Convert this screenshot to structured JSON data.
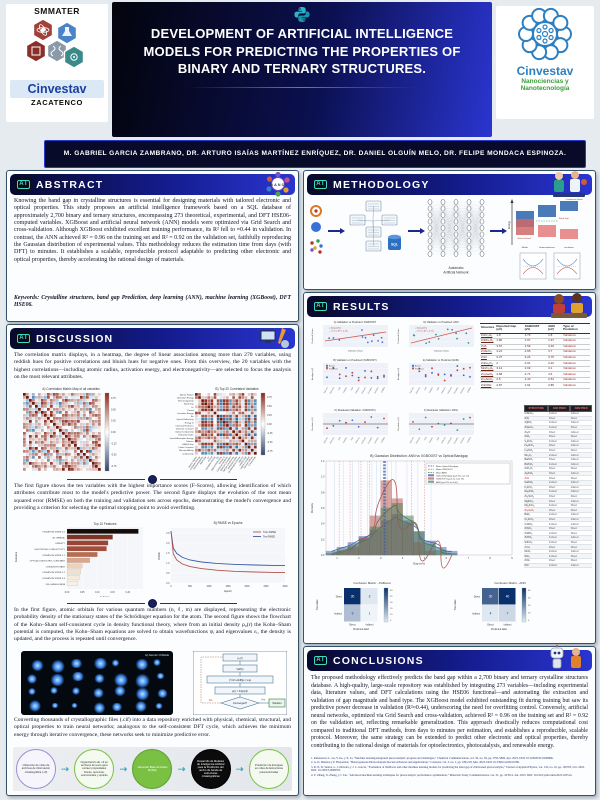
{
  "header": {
    "title": "DEVELOPMENT OF ARTIFICIAL INTELLIGENCE MODELS FOR PREDICTING THE PROPERTIES OF BINARY AND TERNARY STRUCTURES.",
    "authors": "M. GABRIEL GARCIA ZAMBRANO, DR. ARTURO ISAÍAS MARTÍNEZ ENRÍQUEZ, DR. DANIEL OLGUÍN MELO, DR. FELIPE MONDACA ESPINOZA.",
    "logo_left": {
      "program": "SMMATER",
      "brand": "Cinvestav",
      "campus": "ZACATENCO"
    },
    "logo_right": {
      "brand": "Cinvestav",
      "line1": "Nanociencias y",
      "line2": "Nanotecnología"
    }
  },
  "abstract": {
    "heading": "ABSTRACT",
    "body": "Knowing the band gap in crystalline structures is essential for designing materials with tailored electronic and optical properties. This study proposes an artificial intelligence framework based on a SQL database of approximately 2,700 binary and ternary structures, encompassing 273 theoretical, experimental, and DFT HSE06-computed variables. XGBoost and artificial neural network (ANN) models were optimized via Grid Search and cross-validation. Although XGBoost exhibited excellent training performance, its R² fell to ≈0.44 in validation. In contrast, the ANN achieved R² = 0.96 on the training set and R² = 0.92 on the validation set, faithfully reproducing the Gaussian distribution of experimental values. This methodology reduces the estimation time from days (with DFT) to minutes. It establishes a scalable, reproducible protocol adaptable to predicting other electronic and optical properties, thereby accelerating the rational design of materials.",
    "keywords": "Keywords: Crystalline structures, band gap Prediction, deep learning (ANN), machine learning (XGBoost), DFT HSE06."
  },
  "methodology": {
    "heading": "METHODOLOGY",
    "sql_label": "SQL",
    "nn_caption_1": "Automatic",
    "nn_caption_2": "Artificial Network",
    "band_chart": {
      "ylabel": "Energy",
      "conduction": "Conduction Band",
      "valence": "Valence Band",
      "gap": "Band Gap",
      "categories": [
        "Metals",
        "Semiconductors",
        "Insulators"
      ]
    }
  },
  "discussion": {
    "heading": "DISCUSSION",
    "p1": "The correlation matrix displays, in a heatmap, the degree of linear association among more than 270 variables, using reddish hues for positive correlations and bluish hues for negative ones. From this overview, the 20 variables with the highest correlations—including atomic radius, activation energy, and electronegativity—are selected to focus the analysis on the most relevant attributes.",
    "p2": "The first figure shows the ten variables with the highest importance scores (F-Scores), allowing identification of which attributes contribute most to the model's predictive power. The second figure displays the evolution of the root mean squared error (RMSE) on both the training and validation sets across epochs, demonstrating the model's convergence and providing a criterion for selecting the optimal stopping point to avoid overfitting.",
    "p3": "In the first figure, atomic orbitals for various quantum numbers (n, ℓ, m) are displayed, representing the electronic probability density of the stationary states of the Schrödinger equation for the atom. The second figure shows the flowchart of the Kohn–Sham self-consistent cycle in density functional theory, where from an initial density ρ₀(r) the Kohn–Sham potential is computed, the Kohn–Sham equations are solved to obtain wavefunctions ψᵢ and eigenvalues εᵢ, the density is updated, and the process is repeated until convergence.",
    "p4": "Converting thousands of crystallographic files (.cif) into a data repository enriched with physical, chemical, structural, and optical properties to train neural networks; analogous to the self-consistent DFT cycle, which achieves the minimum energy through iterative convergence, these networks seek to minimize predictive error.",
    "heatmap_a_title": "A) Correlation Matrix Map of all variables",
    "heatmap_b_title": "B) Top 20 Correlated Variables",
    "heatmap_labels": [
      "Atomic Radius",
      "Activation Energy",
      "Electronegativity",
      "Band Gap",
      "Cv",
      "Period",
      "Ionization Energy",
      "Ea",
      "Optical Reflectivity",
      "Energy G",
      "Chemical Hardness",
      "Dielectric Constant",
      "Optical Conductivity",
      "Refraction Index",
      "Optical Absorption Energy",
      "Valence",
      "HSE06 Gap",
      "Lattice Constant",
      "Electron Affinity",
      "Conductivity"
    ],
    "colorbar_ticks": [
      "0.75",
      "0.50",
      "0.25",
      "0.00",
      "-0.25",
      "-0.50",
      "-0.75"
    ],
    "feature_chart": {
      "type": "bar",
      "title": "Top 10 Features",
      "xlabel": "F-Score",
      "ylabel": "Features",
      "categories": [
        "OXIDATION STATE 2.0",
        "3D ORBITAL",
        "DENSITY",
        "ELECTRICAL CONDUCTIVITY",
        "OXIDATION STATE 2.1",
        "OPTICAL DIELECTRIC CONSTANT",
        "OXIDATION STATE",
        "OXIDATION STATE 2.2",
        "OXIDATION STATE 3.4",
        "CELL ANGLE BETA"
      ],
      "values": [
        0.235,
        0.15,
        0.135,
        0.13,
        0.1,
        0.075,
        0.05,
        0.045,
        0.04,
        0.035
      ],
      "colors": [
        "#170b09",
        "#7e3325",
        "#9c4434",
        "#a34c38",
        "#bb6b4e",
        "#d9a88c",
        "#ecd2bb",
        "#f2e0cc",
        "#f6ead9",
        "#f9f1e4"
      ],
      "xticks": [
        "0.00",
        "0.05",
        "0.10",
        "0.15",
        "0.20"
      ],
      "xlim": [
        0,
        0.25
      ]
    },
    "rmse_chart": {
      "type": "line",
      "title": "B) RMSE vs Epochs",
      "xlabel": "Epoch",
      "ylabel": "RMSE",
      "legend": [
        "Train RMSE",
        "Test RMSE"
      ],
      "x": [
        0,
        60,
        150,
        300,
        500,
        800,
        1200,
        1700,
        2200,
        2700,
        3000
      ],
      "train": [
        2.6,
        1.45,
        1.15,
        0.95,
        0.82,
        0.72,
        0.64,
        0.58,
        0.55,
        0.53,
        0.52
      ],
      "test": [
        2.6,
        1.75,
        1.48,
        1.28,
        1.15,
        1.05,
        0.98,
        0.93,
        0.9,
        0.88,
        0.87
      ],
      "train_color": "#b5534a",
      "test_color": "#3b5ba5",
      "yticks": [
        "0.0",
        "0.5",
        "1.0",
        "1.5",
        "2.0",
        "2.5"
      ],
      "xticks": [
        "0",
        "500",
        "1000",
        "1500",
        "2000",
        "2500",
        "3000"
      ],
      "xlim": [
        0,
        3000
      ],
      "ylim": [
        0,
        2.75
      ]
    },
    "orbitals_title": "A) Atomic Orbitals",
    "flowchart_steps": [
      "ρ₀(r)",
      "Veff(r)",
      "[-½∇²+Veff]ψᵢ = εᵢψᵢ",
      "ρ(r) = Σᵢ|ψᵢ(r)|²",
      "Converged?",
      "No",
      "Yes",
      "Solution"
    ],
    "process_steps": [
      {
        "text": "Obtención de miles de archivos de información cristalográfica (.cif)",
        "variant": "outline-purple"
      },
      {
        "text": "Organización de .cif en archivos de texto para extraer propiedades físicas, químicas, estructurales y ópticas",
        "variant": "outline-green"
      },
      {
        "text": "Alimentar Base de Datos MySQL",
        "variant": "fill-green"
      },
      {
        "text": "Desarrollo de Modelos de Inteligencia Artificial para la Predicción del ancho de banda de estructuras cristalográficas",
        "variant": "fill-black"
      },
      {
        "text": "Predicción de Energías en miles de Estructuras parametrizadas",
        "variant": "outline-green"
      }
    ]
  },
  "results": {
    "heading": "RESULTS",
    "scatters": [
      {
        "title": "A) Validation vs Predicted: XGBOOST",
        "legend": [
          "Data points",
          "Fit line (R² = 0.44)"
        ],
        "xlabel": "Validation Values",
        "ylabel": "Predicted Values",
        "point_color": "#4a6fd0"
      },
      {
        "title": "D) Validation vs Predicted: ANN",
        "legend": [
          "Data points",
          "Fit line (R² = 0.92)"
        ],
        "xlabel": "Validation Values",
        "ylabel": "Predicted Values",
        "point_color": "#2a9d8f"
      },
      {
        "title": "B) Validation vs Predicted (XGBOOST)",
        "legend": [
          "Actual",
          "Predicted"
        ],
        "ylabel": "Bandgap (eV)",
        "point_color": "#4a6fd0"
      },
      {
        "title": "E) Validation vs Predicted (ANN)",
        "legend": [
          "Actual",
          "Predicted"
        ],
        "ylabel": "Bandgap (eV)",
        "point_color": "#2a9d8f"
      },
      {
        "title": "C) Residuals (Validation: XGBOOST)",
        "legend": [],
        "ylabel": "Residuals (eV)",
        "point_color": "#4a6fd0"
      },
      {
        "title": "F) Residuals (Validation: ANN)",
        "legend": [],
        "ylabel": "Residuals (eV)",
        "point_color": "#2a9d8f"
      }
    ],
    "pred_table": {
      "headers": [
        "Structure",
        "Reported Gap (eV)",
        "XGBOOST (eV)",
        "ANN (eV)",
        "Type of Prediction"
      ],
      "rows": [
        [
          "ZnCr₂O₄",
          "1.8",
          "1.73",
          "1.8",
          "Validation"
        ],
        [
          "ZnMn₂O₄",
          "1.86",
          "1.97",
          "1.97",
          "Validation"
        ],
        [
          "ZnS",
          "3.67",
          "2.59",
          "3.49",
          "Validation"
        ],
        [
          "ZnSnO₃",
          "4.21",
          "2.65",
          "3.7",
          "Validation"
        ],
        [
          "ZnO",
          "3.37",
          "3.24",
          "3.75",
          "Validation"
        ],
        [
          "ZnFe₂O₄",
          "2",
          "2.01",
          "2.22",
          "Validation"
        ],
        [
          "MnZn₂O₄",
          "3.14",
          "2.03",
          "3.1",
          "Validation"
        ],
        [
          "Zn₂GeO₄",
          "4.68",
          "4.71",
          "4.6",
          "Validation"
        ],
        [
          "Zn₂SnO₄",
          "2.5",
          "2.43",
          "2.54",
          "Validation"
        ],
        [
          "ZnOOH",
          "2.87",
          "1.91",
          "2.85",
          "Validation"
        ]
      ]
    },
    "histogram": {
      "type": "bar",
      "title": "B) Gaussian Distribution: ANN vs XGBOOST vs Optical Bandgap",
      "xlabel": "Gap (eV)",
      "ylabel": "Density",
      "xlim": [
        0.5,
        9
      ],
      "ylim": [
        0,
        1.2
      ],
      "bin_start": 0.5,
      "bin_width": 0.5,
      "series": [
        {
          "name": "Optical Bandgap (μ=3.18, σ=1.12)",
          "color": "#3b5ba5",
          "bars": [
            0.05,
            0.1,
            0.16,
            0.24,
            0.32,
            0.44,
            0.52,
            0.44,
            0.3,
            0.18,
            0.1,
            0.05
          ]
        },
        {
          "name": "XGBOOST (μ=3.12, σ=0.76)",
          "color": "#b5534a",
          "bars": [
            0.0,
            0.04,
            0.1,
            0.22,
            0.5,
            0.95,
            0.72,
            0.4,
            0.16,
            0.05,
            0.0,
            0.0
          ]
        },
        {
          "name": "ANN (μ=3.23, σ=1.00)",
          "color": "#4a7a58",
          "bars": [
            0.02,
            0.06,
            0.12,
            0.2,
            0.36,
            0.6,
            0.66,
            0.5,
            0.3,
            0.14,
            0.06,
            0.02
          ]
        }
      ],
      "means": [
        {
          "label": "Mean Optical Bandgap",
          "x": 3.18,
          "color": "#3b5ba5"
        },
        {
          "label": "Mean XGBOOST",
          "x": 3.12,
          "color": "#b5534a"
        },
        {
          "label": "Mean ANN",
          "x": 3.23,
          "color": "#4a7a58"
        }
      ],
      "xticks": [
        "1",
        "2",
        "3",
        "4",
        "5",
        "6",
        "7",
        "8",
        "9"
      ],
      "yticks": [
        "0.0",
        "0.2",
        "0.4",
        "0.6",
        "0.8",
        "1.0",
        "1.2"
      ]
    },
    "class_table": {
      "headers": [
        "STRUCTURE",
        "XGB PRED",
        "ANN PRED"
      ],
      "rows": [
        [
          "CdSnO₃",
          "Indirect",
          "Indirect",
          0
        ],
        [
          "ZnS",
          "Direct",
          "Direct",
          0
        ],
        [
          "AgNO₃",
          "Indirect",
          "Indirect",
          0
        ],
        [
          "ZnGeO₃",
          "Indirect",
          "Direct",
          0
        ],
        [
          "Zn₂O",
          "Direct",
          "Indirect",
          0
        ],
        [
          "ZnO₂",
          "Direct",
          "Direct",
          0
        ],
        [
          "V₂ZnO₆",
          "Indirect",
          "Indirect",
          0
        ],
        [
          "Fe₂ZnO₄",
          "Direct",
          "Indirect",
          0
        ],
        [
          "In₂ZnO₄",
          "Direct",
          "Direct",
          0
        ],
        [
          "Mn₂O₃",
          "Indirect",
          "Indirect",
          0
        ],
        [
          "BaZnO₂",
          "Direct",
          "Indirect",
          0
        ],
        [
          "RbZnO₂",
          "Indirect",
          "Indirect",
          0
        ],
        [
          "ZnH₂O₂",
          "Direct",
          "Direct",
          0
        ],
        [
          "Al₂ZnO₄",
          "Direct",
          "Indirect",
          0
        ],
        [
          "ZnO",
          "Direct",
          "Direct",
          1
        ],
        [
          "CaZnO₂",
          "Indirect",
          "Indirect",
          0
        ],
        [
          "K₂ZnO₂",
          "Direct",
          "Indirect",
          0
        ],
        [
          "Na₂ZnO₂",
          "Indirect",
          "Indirect",
          0
        ],
        [
          "Zn₂SnO₄",
          "Direct",
          "Direct",
          0
        ],
        [
          "MgZnO₂",
          "Direct",
          "Indirect",
          0
        ],
        [
          "Mg₂ZnO₄",
          "Indirect",
          "Direct",
          0
        ],
        [
          "Zn₂GeO₄",
          "Direct",
          "Direct",
          1
        ],
        [
          "BaO₂",
          "Indirect",
          "Indirect",
          0
        ],
        [
          "Cr₂ZnO₄",
          "Direct",
          "Indirect",
          0
        ],
        [
          "CuWO₄",
          "Indirect",
          "Indirect",
          0
        ],
        [
          "ZnSO₄",
          "Direct",
          "Direct",
          0
        ],
        [
          "ZnWO₄",
          "Indirect",
          "Direct",
          0
        ],
        [
          "ZnTiO₃",
          "Indirect",
          "Indirect",
          0
        ],
        [
          "SrZnO₂",
          "Indirect",
          "Direct",
          0
        ],
        [
          "ZnSe",
          "Direct",
          "Direct",
          1
        ],
        [
          "MoO₃",
          "Indirect",
          "Indirect",
          0
        ],
        [
          "WO₃",
          "Indirect",
          "Direct",
          0
        ],
        [
          "ZnTe",
          "Direct",
          "Direct",
          0
        ],
        [
          "NiO",
          "Indirect",
          "Indirect",
          0
        ]
      ]
    },
    "confusion": [
      {
        "title": "Confusion Matrix - XGBoost",
        "row_labels": [
          "Direct",
          "Indirect"
        ],
        "col_labels": [
          "Direct",
          "Indirect"
        ],
        "cells": [
          [
            30,
            3
          ],
          [
            9,
            1
          ]
        ],
        "max": 30,
        "cbar_ticks": [
          "30",
          "25",
          "20",
          "15",
          "10",
          "5"
        ],
        "xlabel": "Predicted label",
        "ylabel": "True label"
      },
      {
        "title": "Confusion Matrix - ANN",
        "row_labels": [
          "Direct",
          "Indirect"
        ],
        "col_labels": [
          "Direct",
          "Indirect"
        ],
        "cells": [
          [
            30,
            40
          ],
          [
            4,
            7
          ]
        ],
        "max": 40,
        "cbar_ticks": [
          "40",
          "30",
          "20",
          "10",
          "5"
        ],
        "xlabel": "Predicted label",
        "ylabel": "True label"
      }
    ]
  },
  "conclusions": {
    "heading": "CONCLUSIONS",
    "body": "The proposed methodology effectively predicts the band gap within a 2,700 binary and ternary crystalline structures database. A high-quality, large-scale repository was established by integrating 273 variables—including experimental data, literature values, and DFT calculations using the HSE06 functional—and automating the extraction and validation of gap magnitude and band type. The XGBoost model exhibited outstanding fit during training but saw its predictive power decrease in validation (R²≈0.44), underscoring the need for overfitting control. Conversely, artificial neural networks, optimized via Grid Search and cross-validation, achieved R² = 0.96 on the training set and R² = 0.92 on the validation set, reflecting remarkable generalization. This approach drastically reduces computational cost compared to traditional DFT methods, from days to minutes per estimation, and establishes a reproducible, scalable protocol. Moreover, the same strategy can be extended to predict other electronic and optical properties, thereby contributing to the rational design of materials for optoelectronics, photocatalysis, and renewable energy.",
    "references": [
      "1. References: L. Ge, Y. Ke, y X. Li, “Machine learning-integrated photocatalysis: progress and challenges,” Chemical Communications, vol. 59, no. 39, pp. 5795-5806, Apr. 2023. DOI: 10.1039/D3CC00989K.",
      "2. A. O. Ibhadon y P. Fitzpatrick, “Heterogeneous Photocatalysis: Recent Advances and Applications,” Catalysts, vol. 3, no. 1, pp. 189-218, Mar. 2023. DOI: 10.3390/catal3010189.",
      "3. R. N. D. Santos, L. J. Oliveira, y J. C. Garcia, “Evaluation of XGBoost and other machine learning models for predicting the band gap of ZnO-based photocatalysts,” Journal of Applied Physics, vol. 132, no. 16, pp. 165703, Oct. 2022. DOI: 10.1063/5.0098765.",
      "4. Y. Zhang, X. Zhang, y J. Liu, “Advanced machine learning techniques for photocatalytic performance optimization,” Materials Today Communications, vol. 31, pp. 103514, Jan. 2023. DOI: 10.1016/j.mtcomm.2022.103514."
    ]
  }
}
